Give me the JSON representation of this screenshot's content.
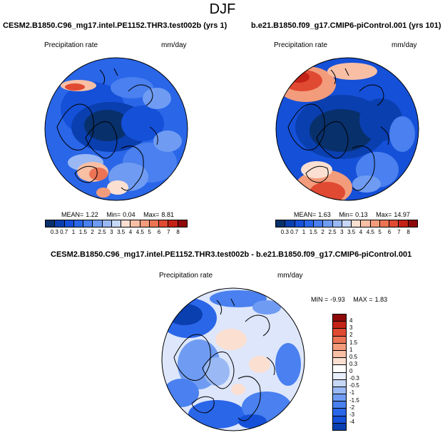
{
  "season": "DJF",
  "panels": [
    {
      "title": "CESM2.B1850.C96_mg17.intel.PE1152.THR3.test002b (yrs 1)",
      "variable": "Precipitation rate",
      "units": "mm/day",
      "stats": {
        "mean_label": "MEAN=",
        "mean": "1.22",
        "min_label": "Min=",
        "min": "0.04",
        "max_label": "Max=",
        "max": "8.81"
      }
    },
    {
      "title": "b.e21.B1850.f09_g17.CMIP6-piControl.001 (yrs 101)",
      "variable": "Precipitation rate",
      "units": "mm/day",
      "stats": {
        "mean_label": "MEAN=",
        "mean": "1.63",
        "min_label": "Min=",
        "min": "0.13",
        "max_label": "Max=",
        "max": "14.97"
      }
    },
    {
      "title": "CESM2.B1850.C96_mg17.intel.PE1152.THR3.test002b - b.e21.B1850.f09_g17.CMIP6-piControl.001",
      "variable": "Precipitation rate",
      "units": "mm/day",
      "stats": {
        "min_label": "MIN =",
        "min": "-9.93",
        "max_label": "MAX =",
        "max": "1.83"
      }
    }
  ],
  "colorbar_abs": {
    "labels": [
      "0.3",
      "0.7",
      "1",
      "1.5",
      "2",
      "2.5",
      "3",
      "3.5",
      "4",
      "4.5",
      "5",
      "6",
      "7",
      "8"
    ],
    "colors": [
      "#08306b",
      "#0a3fb0",
      "#1550d8",
      "#2a66e8",
      "#4a80ef",
      "#6f9cf2",
      "#9ab9f4",
      "#c7d8f7",
      "#fbe0d2",
      "#f8bfa5",
      "#f39c7c",
      "#ec7455",
      "#e04a33",
      "#c42217",
      "#8e0a0a"
    ]
  },
  "colorbar_diff": {
    "labels": [
      "4",
      "3",
      "2",
      "1.5",
      "1",
      "0.5",
      "0.3",
      "0",
      "-0.3",
      "-0.5",
      "-1",
      "-1.5",
      "-2",
      "-3",
      "-4"
    ],
    "colors": [
      "#8e0a0a",
      "#c42217",
      "#e04a33",
      "#ec7455",
      "#f39c7c",
      "#f8bfa5",
      "#fbe0d2",
      "#ffffff",
      "#e8eefc",
      "#c7d8f7",
      "#9ab9f4",
      "#6f9cf2",
      "#4a80ef",
      "#2a66e8",
      "#1550d8",
      "#0a3fb0"
    ]
  }
}
